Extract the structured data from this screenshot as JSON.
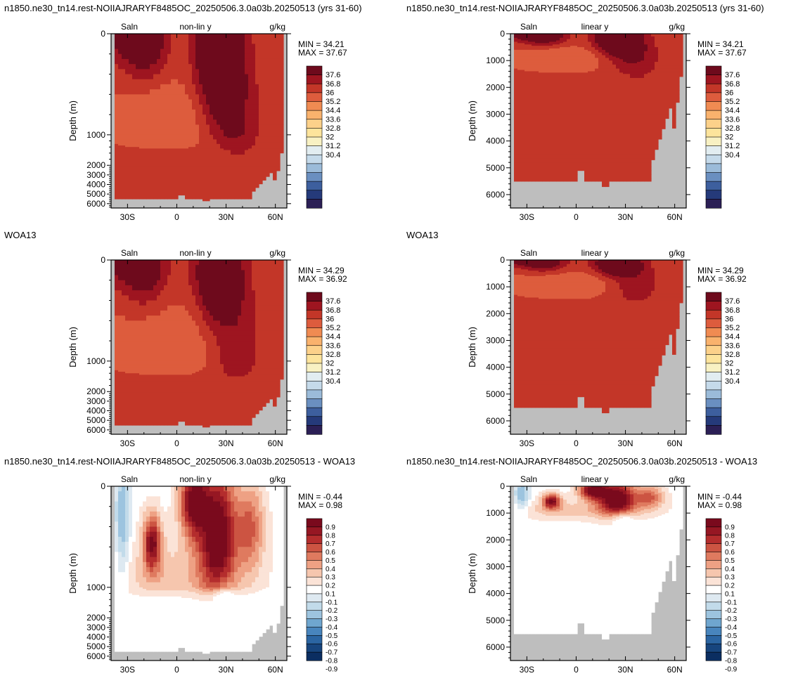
{
  "figure": {
    "panel_title_model": "n1850.ne30_tn14.rest-NOIIAJRARYF8485OC_20250506.3.0a03b.20250513 (yrs 31-60)",
    "panel_title_obs": "WOA13",
    "panel_title_diff": "n1850.ne30_tn14.rest-NOIIAJRARYF8485OC_20250506.3.0a03b.20250513 - WOA13",
    "variable_label": "Saln",
    "units_label": "g/kg",
    "ylabel": "Depth (m)",
    "land_color": "#bebebe"
  },
  "chart_data": [
    {
      "type": "heatmap",
      "row": 0,
      "col": 0,
      "scale": "non-lin y",
      "field": "model",
      "title": "n1850.ne30_tn14.rest-NOIIAJRARYF8485OC_20250506.3.0a03b.20250513 (yrs 31-60)",
      "min_label": "MIN =  34.21",
      "max_label": "MAX =  37.67",
      "xlabel": "",
      "ylabel": "Depth (m)",
      "x_ticks": [
        "30S",
        "0",
        "30N",
        "60N"
      ],
      "x_tick_values": [
        -30,
        0,
        30,
        60
      ],
      "xlim": [
        -40,
        67
      ],
      "y_ticks": [
        "0",
        "1000",
        "2000",
        "3000",
        "4000",
        "5000",
        "6000"
      ],
      "y_tick_values": [
        0,
        1000,
        2000,
        3000,
        4000,
        5000,
        6000
      ],
      "ylim": [
        0,
        6500
      ],
      "colorbar_labels": [
        "37.6",
        "36.8",
        "36",
        "35.2",
        "34.4",
        "33.6",
        "32.8",
        "32",
        "31.2",
        "30.4"
      ]
    },
    {
      "type": "heatmap",
      "row": 0,
      "col": 1,
      "scale": "linear y",
      "field": "model",
      "title": "n1850.ne30_tn14.rest-NOIIAJRARYF8485OC_20250506.3.0a03b.20250513 (yrs 31-60)",
      "min_label": "MIN =  34.21",
      "max_label": "MAX =  37.67",
      "xlabel": "",
      "ylabel": "Depth (m)",
      "x_ticks": [
        "30S",
        "0",
        "30N",
        "60N"
      ],
      "x_tick_values": [
        -30,
        0,
        30,
        60
      ],
      "xlim": [
        -40,
        67
      ],
      "y_ticks": [
        "0",
        "1000",
        "2000",
        "3000",
        "4000",
        "5000",
        "6000"
      ],
      "y_tick_values": [
        0,
        1000,
        2000,
        3000,
        4000,
        5000,
        6000
      ],
      "ylim": [
        0,
        6500
      ],
      "colorbar_labels": [
        "37.6",
        "36.8",
        "36",
        "35.2",
        "34.4",
        "33.6",
        "32.8",
        "32",
        "31.2",
        "30.4"
      ]
    },
    {
      "type": "heatmap",
      "row": 1,
      "col": 0,
      "scale": "non-lin y",
      "field": "obs",
      "title": "WOA13",
      "min_label": "MIN =  34.29",
      "max_label": "MAX =  36.92",
      "xlabel": "",
      "ylabel": "Depth (m)",
      "x_ticks": [
        "30S",
        "0",
        "30N",
        "60N"
      ],
      "x_tick_values": [
        -30,
        0,
        30,
        60
      ],
      "xlim": [
        -40,
        67
      ],
      "y_ticks": [
        "0",
        "1000",
        "2000",
        "3000",
        "4000",
        "5000",
        "6000"
      ],
      "y_tick_values": [
        0,
        1000,
        2000,
        3000,
        4000,
        5000,
        6000
      ],
      "ylim": [
        0,
        6500
      ],
      "colorbar_labels": [
        "37.6",
        "36.8",
        "36",
        "35.2",
        "34.4",
        "33.6",
        "32.8",
        "32",
        "31.2",
        "30.4"
      ]
    },
    {
      "type": "heatmap",
      "row": 1,
      "col": 1,
      "scale": "linear y",
      "field": "obs",
      "title": "WOA13",
      "min_label": "MIN =  34.29",
      "max_label": "MAX =  36.92",
      "xlabel": "",
      "ylabel": "Depth (m)",
      "x_ticks": [
        "30S",
        "0",
        "30N",
        "60N"
      ],
      "x_tick_values": [
        -30,
        0,
        30,
        60
      ],
      "xlim": [
        -40,
        67
      ],
      "y_ticks": [
        "0",
        "1000",
        "2000",
        "3000",
        "4000",
        "5000",
        "6000"
      ],
      "y_tick_values": [
        0,
        1000,
        2000,
        3000,
        4000,
        5000,
        6000
      ],
      "ylim": [
        0,
        6500
      ],
      "colorbar_labels": [
        "37.6",
        "36.8",
        "36",
        "35.2",
        "34.4",
        "33.6",
        "32.8",
        "32",
        "31.2",
        "30.4"
      ]
    },
    {
      "type": "heatmap",
      "row": 2,
      "col": 0,
      "scale": "non-lin y",
      "field": "diff",
      "title": "n1850.ne30_tn14.rest-NOIIAJRARYF8485OC_20250506.3.0a03b.20250513 - WOA13",
      "min_label": "MIN =  -0.44",
      "max_label": "MAX =   0.98",
      "xlabel": "",
      "ylabel": "Depth (m)",
      "x_ticks": [
        "30S",
        "0",
        "30N",
        "60N"
      ],
      "x_tick_values": [
        -30,
        0,
        30,
        60
      ],
      "xlim": [
        -40,
        67
      ],
      "y_ticks": [
        "0",
        "1000",
        "2000",
        "3000",
        "4000",
        "5000",
        "6000"
      ],
      "y_tick_values": [
        0,
        1000,
        2000,
        3000,
        4000,
        5000,
        6000
      ],
      "ylim": [
        0,
        6500
      ],
      "colorbar_labels": [
        "0.9",
        "0.8",
        "0.7",
        "0.6",
        "0.5",
        "0.4",
        "0.3",
        "0.2",
        "0.1",
        "-0.1",
        "-0.2",
        "-0.3",
        "-0.4",
        "-0.5",
        "-0.6",
        "-0.7",
        "-0.8",
        "-0.9"
      ]
    },
    {
      "type": "heatmap",
      "row": 2,
      "col": 1,
      "scale": "linear y",
      "field": "diff",
      "title": "n1850.ne30_tn14.rest-NOIIAJRARYF8485OC_20250506.3.0a03b.20250513 - WOA13",
      "min_label": "MIN =  -0.44",
      "max_label": "MAX =   0.98",
      "xlabel": "",
      "ylabel": "Depth (m)",
      "x_ticks": [
        "30S",
        "0",
        "30N",
        "60N"
      ],
      "x_tick_values": [
        -30,
        0,
        30,
        60
      ],
      "xlim": [
        -40,
        67
      ],
      "y_ticks": [
        "0",
        "1000",
        "2000",
        "3000",
        "4000",
        "5000",
        "6000"
      ],
      "y_tick_values": [
        0,
        1000,
        2000,
        3000,
        4000,
        5000,
        6000
      ],
      "ylim": [
        0,
        6500
      ],
      "colorbar_labels": [
        "0.9",
        "0.8",
        "0.7",
        "0.6",
        "0.5",
        "0.4",
        "0.3",
        "0.2",
        "0.1",
        "-0.1",
        "-0.2",
        "-0.3",
        "-0.4",
        "-0.5",
        "-0.6",
        "-0.7",
        "-0.8",
        "-0.9"
      ]
    }
  ],
  "colors": {
    "salinity_colorbar": [
      "#2b1f55",
      "#253a7a",
      "#3d5f9e",
      "#6a8fc0",
      "#9bbbd9",
      "#c5daea",
      "#e2edf1",
      "#f8f1c3",
      "#fde49c",
      "#fcd18a",
      "#f9b26d",
      "#f08b52",
      "#dd5c3d",
      "#c33628",
      "#9e1520",
      "#6e0a1c"
    ],
    "diff_colorbar": [
      "#0b2e61",
      "#17457e",
      "#2b65a2",
      "#4885bd",
      "#6fa6cf",
      "#9dc4df",
      "#c2dbea",
      "#dee9f1",
      "#ffffff",
      "#fbe3d7",
      "#f6c6ae",
      "#eea184",
      "#df7a5f",
      "#cc5442",
      "#b42d2d",
      "#961723",
      "#7a0a1d"
    ],
    "land": "#bebebe"
  }
}
